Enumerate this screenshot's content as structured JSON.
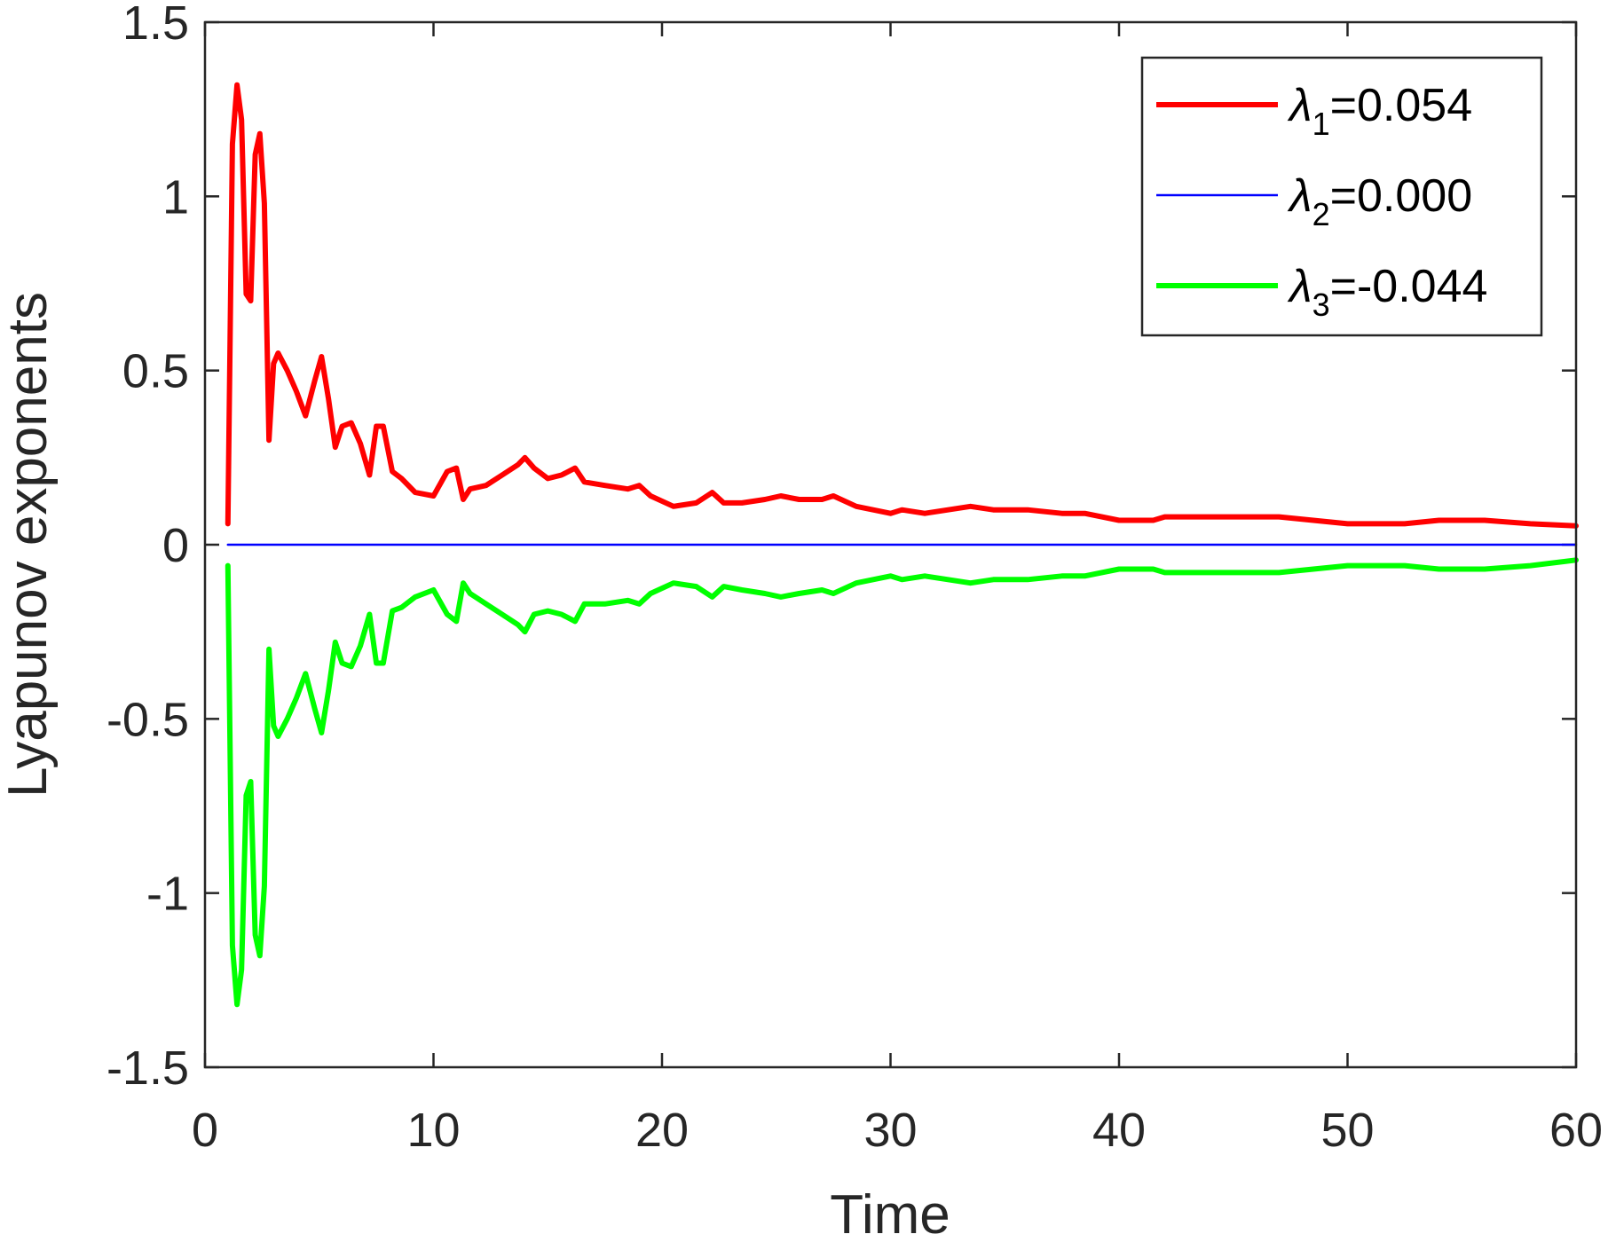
{
  "chart_data": {
    "type": "line",
    "title": "",
    "xlabel": "Time",
    "ylabel": "Lyapunov exponents",
    "xlim": [
      0,
      60
    ],
    "ylim": [
      -1.5,
      1.5
    ],
    "x_ticks": [
      "0",
      "10",
      "20",
      "30",
      "40",
      "50",
      "60"
    ],
    "y_ticks": [
      "1.5",
      "1",
      "0.5",
      "0",
      "-0.5",
      "-1",
      "-1.5"
    ],
    "grid": false,
    "legend_position": "top-right",
    "series": [
      {
        "name": "λ1=0.054",
        "symbol": "λ",
        "sub": "1",
        "value_text": "=0.054",
        "color": "#ff0000",
        "x": [
          1.0,
          1.2,
          1.4,
          1.6,
          1.8,
          2.0,
          2.2,
          2.4,
          2.6,
          2.8,
          3.0,
          3.2,
          3.6,
          4.0,
          4.4,
          4.8,
          5.1,
          5.4,
          5.7,
          6.0,
          6.4,
          6.8,
          7.2,
          7.5,
          7.8,
          8.2,
          8.6,
          9.2,
          10.0,
          10.6,
          11.0,
          11.3,
          11.6,
          12.3,
          13.0,
          13.7,
          14.0,
          14.4,
          15.0,
          15.6,
          16.2,
          16.6,
          17.5,
          18.5,
          19.0,
          19.5,
          20.5,
          21.5,
          22.2,
          22.7,
          23.5,
          24.5,
          25.2,
          26.0,
          27.0,
          27.5,
          28.5,
          30.0,
          30.5,
          31.5,
          33.5,
          34.5,
          36.0,
          37.5,
          38.5,
          40.0,
          41.5,
          42.0,
          43.5,
          45.0,
          47.0,
          48.5,
          50.0,
          51.0,
          52.5,
          54.0,
          56.0,
          58.0,
          60.0
        ],
        "y": [
          0.06,
          1.15,
          1.32,
          1.22,
          0.72,
          0.7,
          1.12,
          1.18,
          0.98,
          0.3,
          0.52,
          0.55,
          0.5,
          0.44,
          0.37,
          0.47,
          0.54,
          0.42,
          0.28,
          0.34,
          0.35,
          0.29,
          0.2,
          0.34,
          0.34,
          0.21,
          0.19,
          0.15,
          0.14,
          0.21,
          0.22,
          0.13,
          0.16,
          0.17,
          0.2,
          0.23,
          0.25,
          0.22,
          0.19,
          0.2,
          0.22,
          0.18,
          0.17,
          0.16,
          0.17,
          0.14,
          0.11,
          0.12,
          0.15,
          0.12,
          0.12,
          0.13,
          0.14,
          0.13,
          0.13,
          0.14,
          0.11,
          0.09,
          0.1,
          0.09,
          0.11,
          0.1,
          0.1,
          0.09,
          0.09,
          0.07,
          0.07,
          0.08,
          0.08,
          0.08,
          0.08,
          0.07,
          0.06,
          0.06,
          0.06,
          0.07,
          0.07,
          0.06,
          0.054
        ]
      },
      {
        "name": "λ2=0.000",
        "symbol": "λ",
        "sub": "2",
        "value_text": "=0.000",
        "color": "#0000ff",
        "x": [
          1.0,
          60.0
        ],
        "y": [
          0.0,
          0.0
        ]
      },
      {
        "name": "λ3=-0.044",
        "symbol": "λ",
        "sub": "3",
        "value_text": "=-0.044",
        "color": "#00ff00",
        "x": [
          1.0,
          1.2,
          1.4,
          1.6,
          1.8,
          2.0,
          2.2,
          2.4,
          2.6,
          2.8,
          3.0,
          3.2,
          3.6,
          4.0,
          4.4,
          4.8,
          5.1,
          5.4,
          5.7,
          6.0,
          6.4,
          6.8,
          7.2,
          7.5,
          7.8,
          8.2,
          8.6,
          9.2,
          10.0,
          10.6,
          11.0,
          11.3,
          11.6,
          12.3,
          13.0,
          13.7,
          14.0,
          14.4,
          15.0,
          15.6,
          16.2,
          16.6,
          17.5,
          18.5,
          19.0,
          19.5,
          20.5,
          21.5,
          22.2,
          22.7,
          23.5,
          24.5,
          25.2,
          26.0,
          27.0,
          27.5,
          28.5,
          30.0,
          30.5,
          31.5,
          33.5,
          34.5,
          36.0,
          37.5,
          38.5,
          40.0,
          41.5,
          42.0,
          43.5,
          45.0,
          47.0,
          48.5,
          50.0,
          51.0,
          52.5,
          54.0,
          56.0,
          58.0,
          60.0
        ],
        "y": [
          -0.06,
          -1.15,
          -1.32,
          -1.22,
          -0.72,
          -0.68,
          -1.12,
          -1.18,
          -0.98,
          -0.3,
          -0.52,
          -0.55,
          -0.5,
          -0.44,
          -0.37,
          -0.47,
          -0.54,
          -0.42,
          -0.28,
          -0.34,
          -0.35,
          -0.29,
          -0.2,
          -0.34,
          -0.34,
          -0.19,
          -0.18,
          -0.15,
          -0.13,
          -0.2,
          -0.22,
          -0.11,
          -0.14,
          -0.17,
          -0.2,
          -0.23,
          -0.25,
          -0.2,
          -0.19,
          -0.2,
          -0.22,
          -0.17,
          -0.17,
          -0.16,
          -0.17,
          -0.14,
          -0.11,
          -0.12,
          -0.15,
          -0.12,
          -0.13,
          -0.14,
          -0.15,
          -0.14,
          -0.13,
          -0.14,
          -0.11,
          -0.09,
          -0.1,
          -0.09,
          -0.11,
          -0.1,
          -0.1,
          -0.09,
          -0.09,
          -0.07,
          -0.07,
          -0.08,
          -0.08,
          -0.08,
          -0.08,
          -0.07,
          -0.06,
          -0.06,
          -0.06,
          -0.07,
          -0.07,
          -0.06,
          -0.044
        ]
      }
    ]
  }
}
